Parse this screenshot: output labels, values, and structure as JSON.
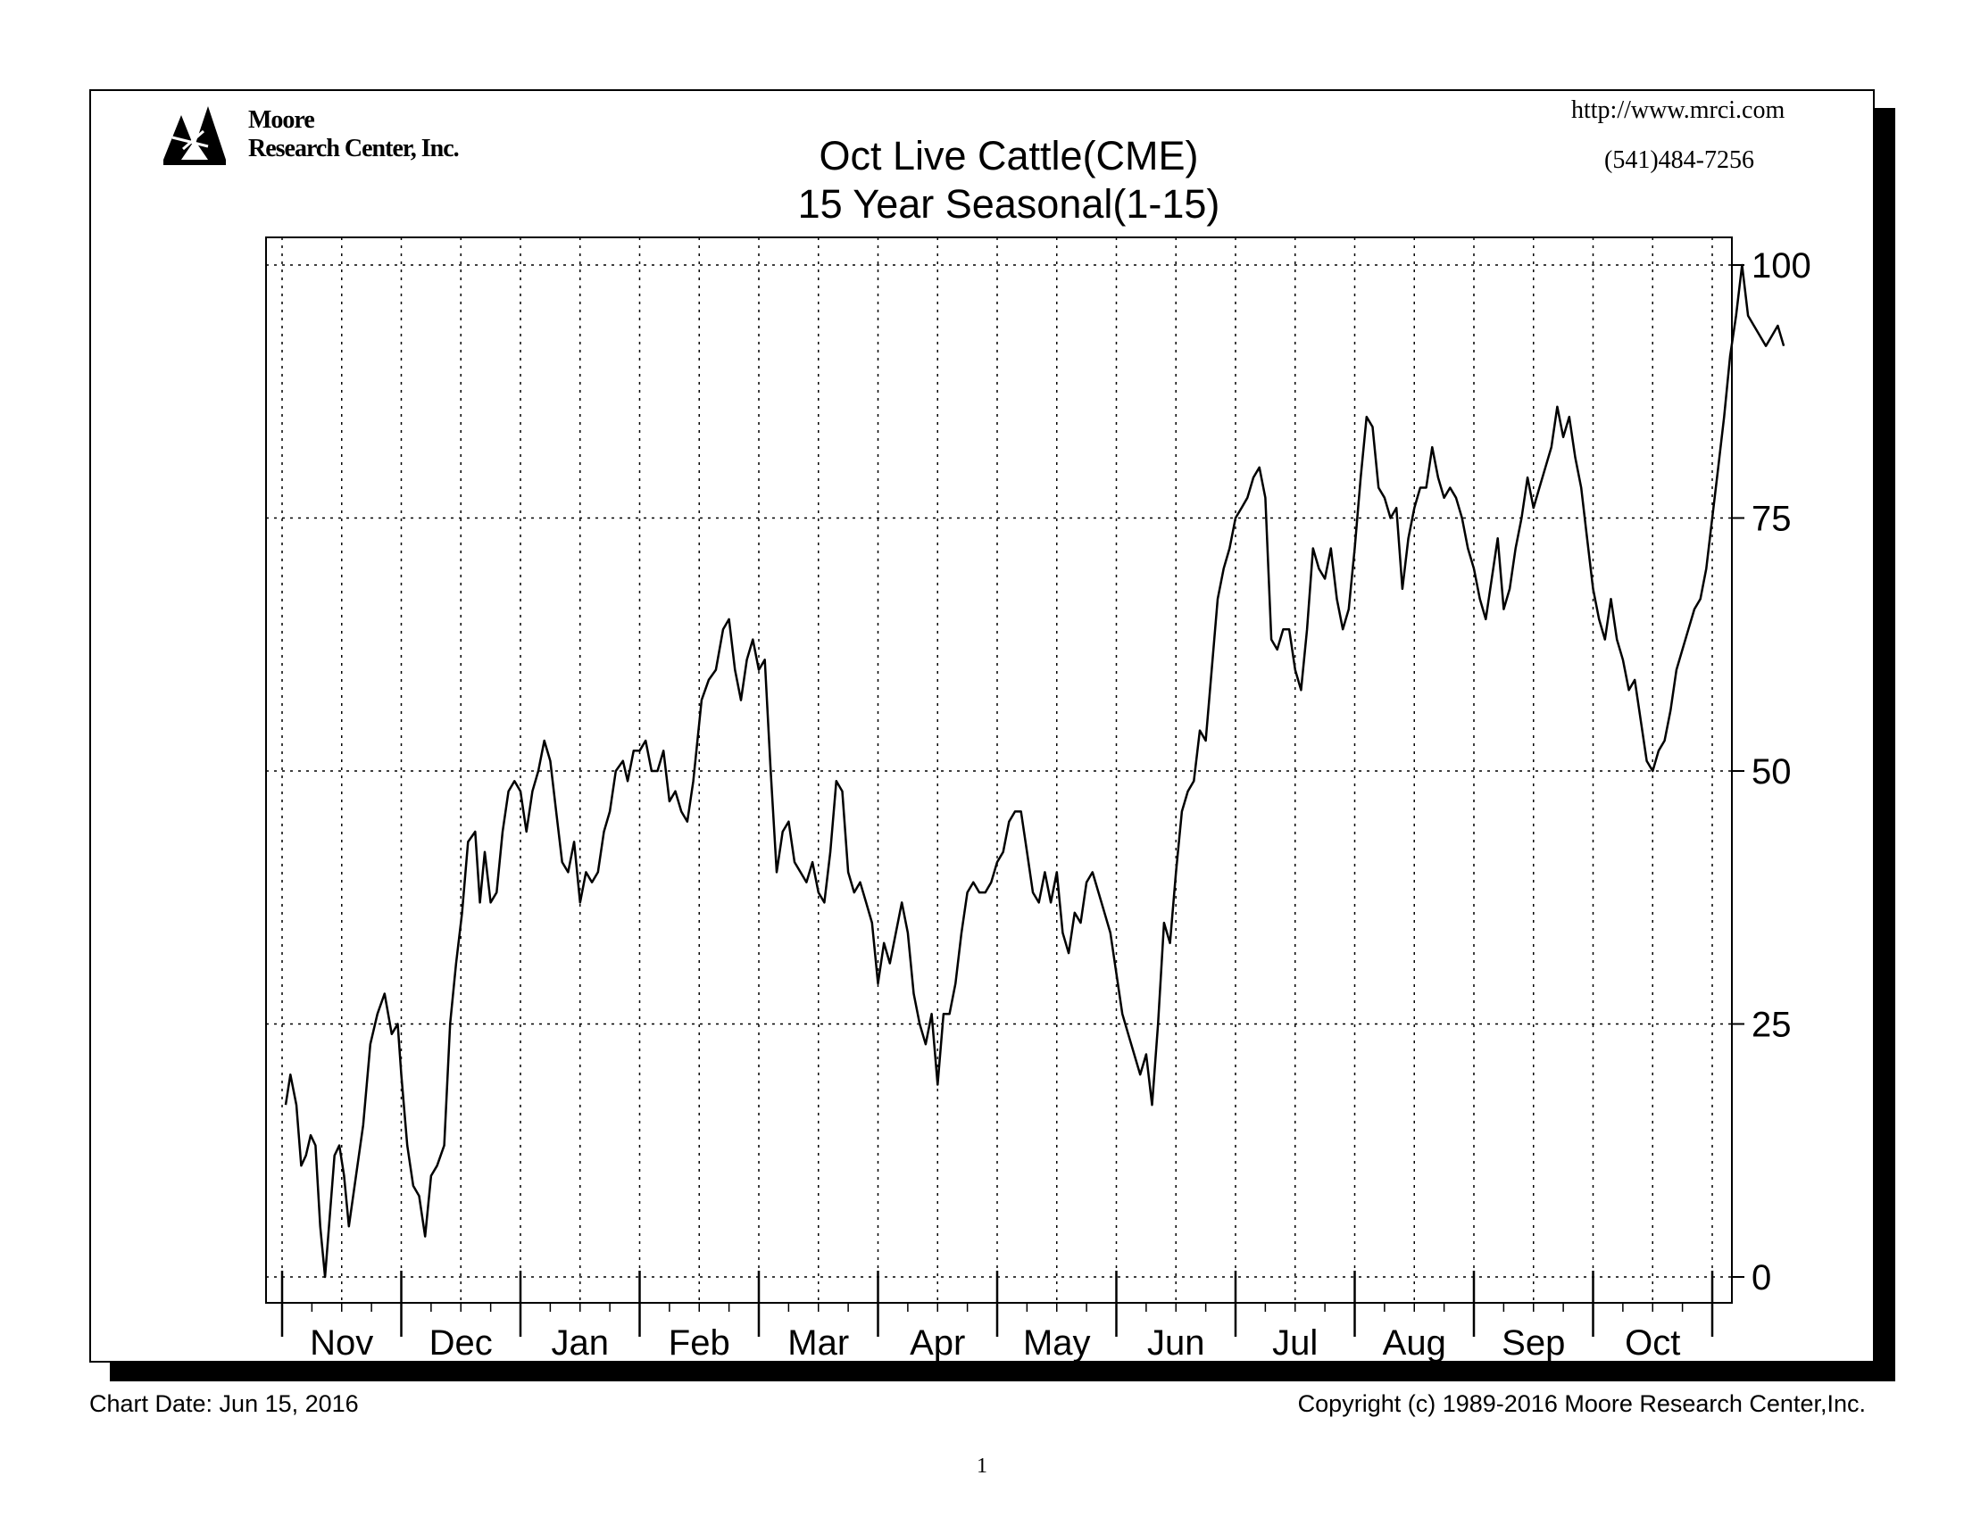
{
  "header": {
    "logo_line1": "Moore",
    "logo_line2": "Research Center, Inc.",
    "url": "http://www.mrci.com",
    "phone": "(541)484-7256"
  },
  "footer": {
    "chart_date": "Chart Date: Jun 15, 2016",
    "copyright": "Copyright (c) 1989-2016 Moore Research Center,Inc.",
    "page_number": "1"
  },
  "colors": {
    "line": "#000000",
    "grid": "#000000",
    "background": "#ffffff"
  },
  "chart_data": {
    "type": "line",
    "title": "Oct Live Cattle(CME)",
    "subtitle": "15 Year Seasonal(1-15)",
    "xlabel": "",
    "ylabel": "",
    "ylim": [
      0,
      100
    ],
    "yticks": [
      0,
      25,
      50,
      75,
      100
    ],
    "y_axis_side": "right",
    "grid": true,
    "months": [
      "Nov",
      "Dec",
      "Jan",
      "Feb",
      "Mar",
      "Apr",
      "May",
      "Jun",
      "Jul",
      "Aug",
      "Sep",
      "Oct"
    ],
    "x_unit": "month index (0 = start of Nov, 12 = end of Oct)",
    "series": [
      {
        "values": [
          [
            0.03,
            17
          ],
          [
            0.07,
            20
          ],
          [
            0.12,
            17
          ],
          [
            0.16,
            11
          ],
          [
            0.2,
            12
          ],
          [
            0.24,
            14
          ],
          [
            0.28,
            13
          ],
          [
            0.32,
            5
          ],
          [
            0.36,
            0
          ],
          [
            0.4,
            6
          ],
          [
            0.44,
            12
          ],
          [
            0.48,
            13
          ],
          [
            0.52,
            10
          ],
          [
            0.56,
            5
          ],
          [
            0.62,
            10
          ],
          [
            0.68,
            15
          ],
          [
            0.74,
            23
          ],
          [
            0.8,
            26
          ],
          [
            0.86,
            28
          ],
          [
            0.92,
            24
          ],
          [
            0.97,
            25
          ],
          [
            1.0,
            20
          ],
          [
            1.05,
            13
          ],
          [
            1.1,
            9
          ],
          [
            1.15,
            8
          ],
          [
            1.2,
            4
          ],
          [
            1.25,
            10
          ],
          [
            1.3,
            11
          ],
          [
            1.36,
            13
          ],
          [
            1.41,
            25
          ],
          [
            1.46,
            31
          ],
          [
            1.51,
            36
          ],
          [
            1.56,
            43
          ],
          [
            1.62,
            44
          ],
          [
            1.66,
            37
          ],
          [
            1.7,
            42
          ],
          [
            1.75,
            37
          ],
          [
            1.8,
            38
          ],
          [
            1.85,
            44
          ],
          [
            1.9,
            48
          ],
          [
            1.95,
            49
          ],
          [
            2.0,
            48
          ],
          [
            2.05,
            44
          ],
          [
            2.1,
            48
          ],
          [
            2.15,
            50
          ],
          [
            2.2,
            53
          ],
          [
            2.25,
            51
          ],
          [
            2.3,
            46
          ],
          [
            2.35,
            41
          ],
          [
            2.4,
            40
          ],
          [
            2.45,
            43
          ],
          [
            2.5,
            37
          ],
          [
            2.55,
            40
          ],
          [
            2.6,
            39
          ],
          [
            2.65,
            40
          ],
          [
            2.7,
            44
          ],
          [
            2.75,
            46
          ],
          [
            2.8,
            50
          ],
          [
            2.86,
            51
          ],
          [
            2.9,
            49
          ],
          [
            2.95,
            52
          ],
          [
            3.0,
            52
          ],
          [
            3.05,
            53
          ],
          [
            3.1,
            50
          ],
          [
            3.15,
            50
          ],
          [
            3.2,
            52
          ],
          [
            3.25,
            47
          ],
          [
            3.3,
            48
          ],
          [
            3.35,
            46
          ],
          [
            3.4,
            45
          ],
          [
            3.45,
            49
          ],
          [
            3.52,
            57
          ],
          [
            3.58,
            59
          ],
          [
            3.64,
            60
          ],
          [
            3.7,
            64
          ],
          [
            3.75,
            65
          ],
          [
            3.8,
            60
          ],
          [
            3.85,
            57
          ],
          [
            3.9,
            61
          ],
          [
            3.95,
            63
          ],
          [
            4.0,
            60
          ],
          [
            4.05,
            61
          ],
          [
            4.1,
            50
          ],
          [
            4.15,
            40
          ],
          [
            4.2,
            44
          ],
          [
            4.25,
            45
          ],
          [
            4.3,
            41
          ],
          [
            4.35,
            40
          ],
          [
            4.4,
            39
          ],
          [
            4.45,
            41
          ],
          [
            4.5,
            38
          ],
          [
            4.55,
            37
          ],
          [
            4.6,
            42
          ],
          [
            4.65,
            49
          ],
          [
            4.7,
            48
          ],
          [
            4.75,
            40
          ],
          [
            4.8,
            38
          ],
          [
            4.85,
            39
          ],
          [
            4.9,
            37
          ],
          [
            4.95,
            35
          ],
          [
            5.0,
            29
          ],
          [
            5.05,
            33
          ],
          [
            5.1,
            31
          ],
          [
            5.15,
            34
          ],
          [
            5.2,
            37
          ],
          [
            5.25,
            34
          ],
          [
            5.3,
            28
          ],
          [
            5.35,
            25
          ],
          [
            5.4,
            23
          ],
          [
            5.45,
            26
          ],
          [
            5.5,
            19
          ],
          [
            5.55,
            26
          ],
          [
            5.6,
            26
          ],
          [
            5.65,
            29
          ],
          [
            5.7,
            34
          ],
          [
            5.75,
            38
          ],
          [
            5.8,
            39
          ],
          [
            5.85,
            38
          ],
          [
            5.9,
            38
          ],
          [
            5.95,
            39
          ],
          [
            6.0,
            41
          ],
          [
            6.05,
            42
          ],
          [
            6.1,
            45
          ],
          [
            6.15,
            46
          ],
          [
            6.2,
            46
          ],
          [
            6.25,
            42
          ],
          [
            6.3,
            38
          ],
          [
            6.35,
            37
          ],
          [
            6.4,
            40
          ],
          [
            6.45,
            37
          ],
          [
            6.5,
            40
          ],
          [
            6.55,
            34
          ],
          [
            6.6,
            32
          ],
          [
            6.65,
            36
          ],
          [
            6.7,
            35
          ],
          [
            6.75,
            39
          ],
          [
            6.8,
            40
          ],
          [
            6.85,
            38
          ],
          [
            6.9,
            36
          ],
          [
            6.95,
            34
          ],
          [
            7.0,
            30
          ],
          [
            7.05,
            26
          ],
          [
            7.1,
            24
          ],
          [
            7.15,
            22
          ],
          [
            7.2,
            20
          ],
          [
            7.25,
            22
          ],
          [
            7.3,
            17
          ],
          [
            7.35,
            25
          ],
          [
            7.4,
            35
          ],
          [
            7.45,
            33
          ],
          [
            7.5,
            40
          ],
          [
            7.55,
            46
          ],
          [
            7.6,
            48
          ],
          [
            7.65,
            49
          ],
          [
            7.7,
            54
          ],
          [
            7.75,
            53
          ],
          [
            7.8,
            60
          ],
          [
            7.85,
            67
          ],
          [
            7.9,
            70
          ],
          [
            7.95,
            72
          ],
          [
            8.0,
            75
          ],
          [
            8.05,
            76
          ],
          [
            8.1,
            77
          ],
          [
            8.15,
            79
          ],
          [
            8.2,
            80
          ],
          [
            8.25,
            77
          ],
          [
            8.3,
            63
          ],
          [
            8.35,
            62
          ],
          [
            8.4,
            64
          ],
          [
            8.45,
            64
          ],
          [
            8.5,
            60
          ],
          [
            8.55,
            58
          ],
          [
            8.6,
            64
          ],
          [
            8.65,
            72
          ],
          [
            8.7,
            70
          ],
          [
            8.75,
            69
          ],
          [
            8.8,
            72
          ],
          [
            8.85,
            67
          ],
          [
            8.9,
            64
          ],
          [
            8.95,
            66
          ],
          [
            9.0,
            72
          ],
          [
            9.05,
            79
          ],
          [
            9.1,
            85
          ],
          [
            9.15,
            84
          ],
          [
            9.2,
            78
          ],
          [
            9.25,
            77
          ],
          [
            9.3,
            75
          ],
          [
            9.35,
            76
          ],
          [
            9.4,
            68
          ],
          [
            9.45,
            73
          ],
          [
            9.5,
            76
          ],
          [
            9.55,
            78
          ],
          [
            9.6,
            78
          ],
          [
            9.65,
            82
          ],
          [
            9.7,
            79
          ],
          [
            9.75,
            77
          ],
          [
            9.8,
            78
          ],
          [
            9.85,
            77
          ],
          [
            9.9,
            75
          ],
          [
            9.95,
            72
          ],
          [
            10.0,
            70
          ],
          [
            10.05,
            67
          ],
          [
            10.1,
            65
          ],
          [
            10.15,
            69
          ],
          [
            10.2,
            73
          ],
          [
            10.25,
            66
          ],
          [
            10.3,
            68
          ],
          [
            10.35,
            72
          ],
          [
            10.4,
            75
          ],
          [
            10.45,
            79
          ],
          [
            10.5,
            76
          ],
          [
            10.55,
            78
          ],
          [
            10.6,
            80
          ],
          [
            10.65,
            82
          ],
          [
            10.7,
            86
          ],
          [
            10.75,
            83
          ],
          [
            10.8,
            85
          ],
          [
            10.85,
            81
          ],
          [
            10.9,
            78
          ],
          [
            10.95,
            73
          ],
          [
            11.0,
            68
          ],
          [
            11.05,
            65
          ],
          [
            11.1,
            63
          ],
          [
            11.15,
            67
          ],
          [
            11.2,
            63
          ],
          [
            11.25,
            61
          ],
          [
            11.3,
            58
          ],
          [
            11.35,
            59
          ],
          [
            11.4,
            55
          ],
          [
            11.45,
            51
          ],
          [
            11.5,
            50
          ],
          [
            11.55,
            52
          ],
          [
            11.6,
            53
          ],
          [
            11.65,
            56
          ],
          [
            11.7,
            60
          ],
          [
            11.75,
            62
          ],
          [
            11.8,
            64
          ],
          [
            11.85,
            66
          ],
          [
            11.9,
            67
          ],
          [
            11.95,
            70
          ],
          [
            12.0,
            75
          ],
          [
            12.05,
            80
          ],
          [
            12.1,
            85
          ],
          [
            12.15,
            91
          ],
          [
            12.2,
            95
          ],
          [
            12.25,
            100
          ],
          [
            12.3,
            95
          ],
          [
            12.35,
            94
          ],
          [
            12.4,
            93
          ],
          [
            12.45,
            92
          ],
          [
            12.5,
            93
          ],
          [
            12.55,
            94
          ],
          [
            12.6,
            92
          ]
        ]
      }
    ]
  }
}
